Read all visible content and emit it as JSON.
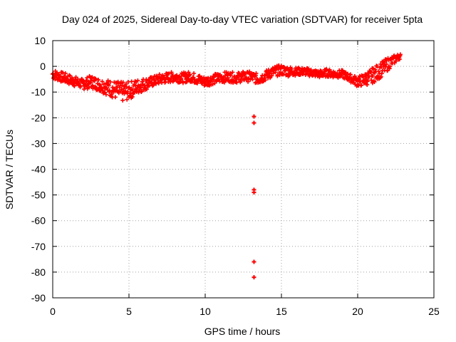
{
  "chart_data": {
    "type": "scatter",
    "title": "Day 024 of 2025, Sidereal Day-to-day VTEC variation (SDTVAR) for receiver 5pta",
    "xlabel": "GPS time / hours",
    "ylabel": "SDTVAR / TECUs",
    "xlim": [
      0,
      25
    ],
    "ylim": [
      -90,
      10
    ],
    "xticks": [
      0,
      5,
      10,
      15,
      20,
      25
    ],
    "yticks": [
      10,
      0,
      -10,
      -20,
      -30,
      -40,
      -50,
      -60,
      -70,
      -80,
      -90
    ],
    "grid": true,
    "marker": "plus",
    "series": [
      {
        "name": "SDTVAR",
        "color": "#ff0000",
        "band": [
          [
            0.0,
            -3.0,
            2.0
          ],
          [
            0.5,
            -4.0,
            2.0
          ],
          [
            1.0,
            -5.0,
            2.0
          ],
          [
            1.5,
            -6.0,
            2.0
          ],
          [
            2.0,
            -7.0,
            2.0
          ],
          [
            2.5,
            -6.0,
            2.5
          ],
          [
            3.0,
            -7.0,
            2.5
          ],
          [
            3.5,
            -8.0,
            3.0
          ],
          [
            4.0,
            -9.0,
            3.5
          ],
          [
            4.5,
            -10.0,
            4.0
          ],
          [
            5.0,
            -9.5,
            3.5
          ],
          [
            5.5,
            -8.0,
            3.0
          ],
          [
            6.0,
            -7.0,
            2.5
          ],
          [
            6.5,
            -6.0,
            2.0
          ],
          [
            7.0,
            -5.0,
            2.0
          ],
          [
            7.5,
            -4.5,
            2.0
          ],
          [
            8.0,
            -4.0,
            2.0
          ],
          [
            8.5,
            -4.5,
            2.0
          ],
          [
            9.0,
            -4.0,
            2.0
          ],
          [
            9.5,
            -5.0,
            2.0
          ],
          [
            10.0,
            -6.0,
            2.0
          ],
          [
            10.5,
            -5.0,
            2.0
          ],
          [
            11.0,
            -4.5,
            2.0
          ],
          [
            11.5,
            -4.0,
            2.0
          ],
          [
            12.0,
            -4.5,
            2.0
          ],
          [
            12.5,
            -4.0,
            2.0
          ],
          [
            13.0,
            -4.0,
            2.0
          ],
          [
            13.5,
            -5.0,
            2.0
          ],
          [
            14.0,
            -3.5,
            2.0
          ],
          [
            14.5,
            -2.0,
            2.0
          ],
          [
            15.0,
            -1.5,
            2.0
          ],
          [
            15.5,
            -2.0,
            2.0
          ],
          [
            16.0,
            -2.0,
            1.5
          ],
          [
            16.5,
            -2.0,
            1.5
          ],
          [
            17.0,
            -2.5,
            1.5
          ],
          [
            17.5,
            -3.0,
            1.5
          ],
          [
            18.0,
            -2.5,
            1.5
          ],
          [
            18.5,
            -3.0,
            1.5
          ],
          [
            19.0,
            -3.0,
            1.5
          ],
          [
            19.5,
            -4.5,
            1.5
          ],
          [
            20.0,
            -6.0,
            2.0
          ],
          [
            20.5,
            -5.0,
            2.5
          ],
          [
            21.0,
            -3.5,
            3.0
          ],
          [
            21.5,
            -1.5,
            3.0
          ],
          [
            22.0,
            1.0,
            2.5
          ],
          [
            22.5,
            3.0,
            1.5
          ],
          [
            22.8,
            4.0,
            1.0
          ]
        ],
        "outliers": [
          [
            13.2,
            -19.5
          ],
          [
            13.2,
            -22.0
          ],
          [
            13.2,
            -48.0
          ],
          [
            13.2,
            -49.0
          ],
          [
            13.2,
            -76.0
          ],
          [
            13.2,
            -82.0
          ]
        ]
      }
    ]
  }
}
